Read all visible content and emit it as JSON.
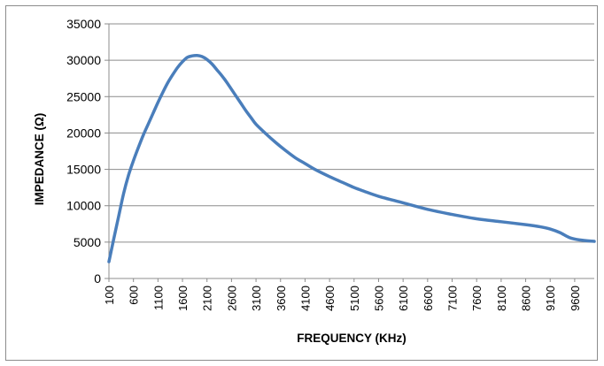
{
  "chart_data": {
    "type": "line",
    "title": "",
    "xlabel": "FREQUENCY (KHz)",
    "ylabel": "IMPEDANCE (Ω)",
    "ylim": [
      0,
      35000
    ],
    "y_ticks": [
      0,
      5000,
      10000,
      15000,
      20000,
      25000,
      30000,
      35000
    ],
    "x_tick_labels": [
      "100",
      "600",
      "1100",
      "1600",
      "2100",
      "2600",
      "3100",
      "3600",
      "4100",
      "4600",
      "5100",
      "5600",
      "6100",
      "6600",
      "7100",
      "7600",
      "8100",
      "8600",
      "9100",
      "9600"
    ],
    "x_range": [
      100,
      9999
    ],
    "grid": "horizontal",
    "legend": "none",
    "line_color": "#4a7ebb",
    "series": [
      {
        "x": [
          100,
          200,
          300,
          400,
          500,
          600,
          700,
          800,
          900,
          1000,
          1100,
          1200,
          1300,
          1400,
          1500,
          1600,
          1700,
          1800,
          1900,
          2000,
          2100,
          2200,
          2300,
          2400,
          2500,
          2600,
          2700,
          2800,
          2900,
          3000,
          3100,
          3300,
          3500,
          3700,
          3900,
          4100,
          4300,
          4600,
          4900,
          5100,
          5300,
          5600,
          6100,
          6600,
          7100,
          7600,
          8100,
          8600,
          8900,
          9100,
          9300,
          9500,
          9700,
          10000
        ],
        "y": [
          2300,
          5500,
          8600,
          11700,
          14200,
          16200,
          18000,
          19700,
          21200,
          22700,
          24200,
          25600,
          26900,
          28000,
          29000,
          29800,
          30400,
          30600,
          30650,
          30500,
          30100,
          29500,
          28700,
          27900,
          27000,
          26000,
          25000,
          24000,
          23000,
          22100,
          21200,
          19900,
          18700,
          17600,
          16600,
          15800,
          15000,
          14000,
          13100,
          12500,
          12000,
          11300,
          10400,
          9500,
          8800,
          8200,
          7800,
          7400,
          7100,
          6800,
          6300,
          5600,
          5300,
          5100
        ]
      }
    ]
  }
}
